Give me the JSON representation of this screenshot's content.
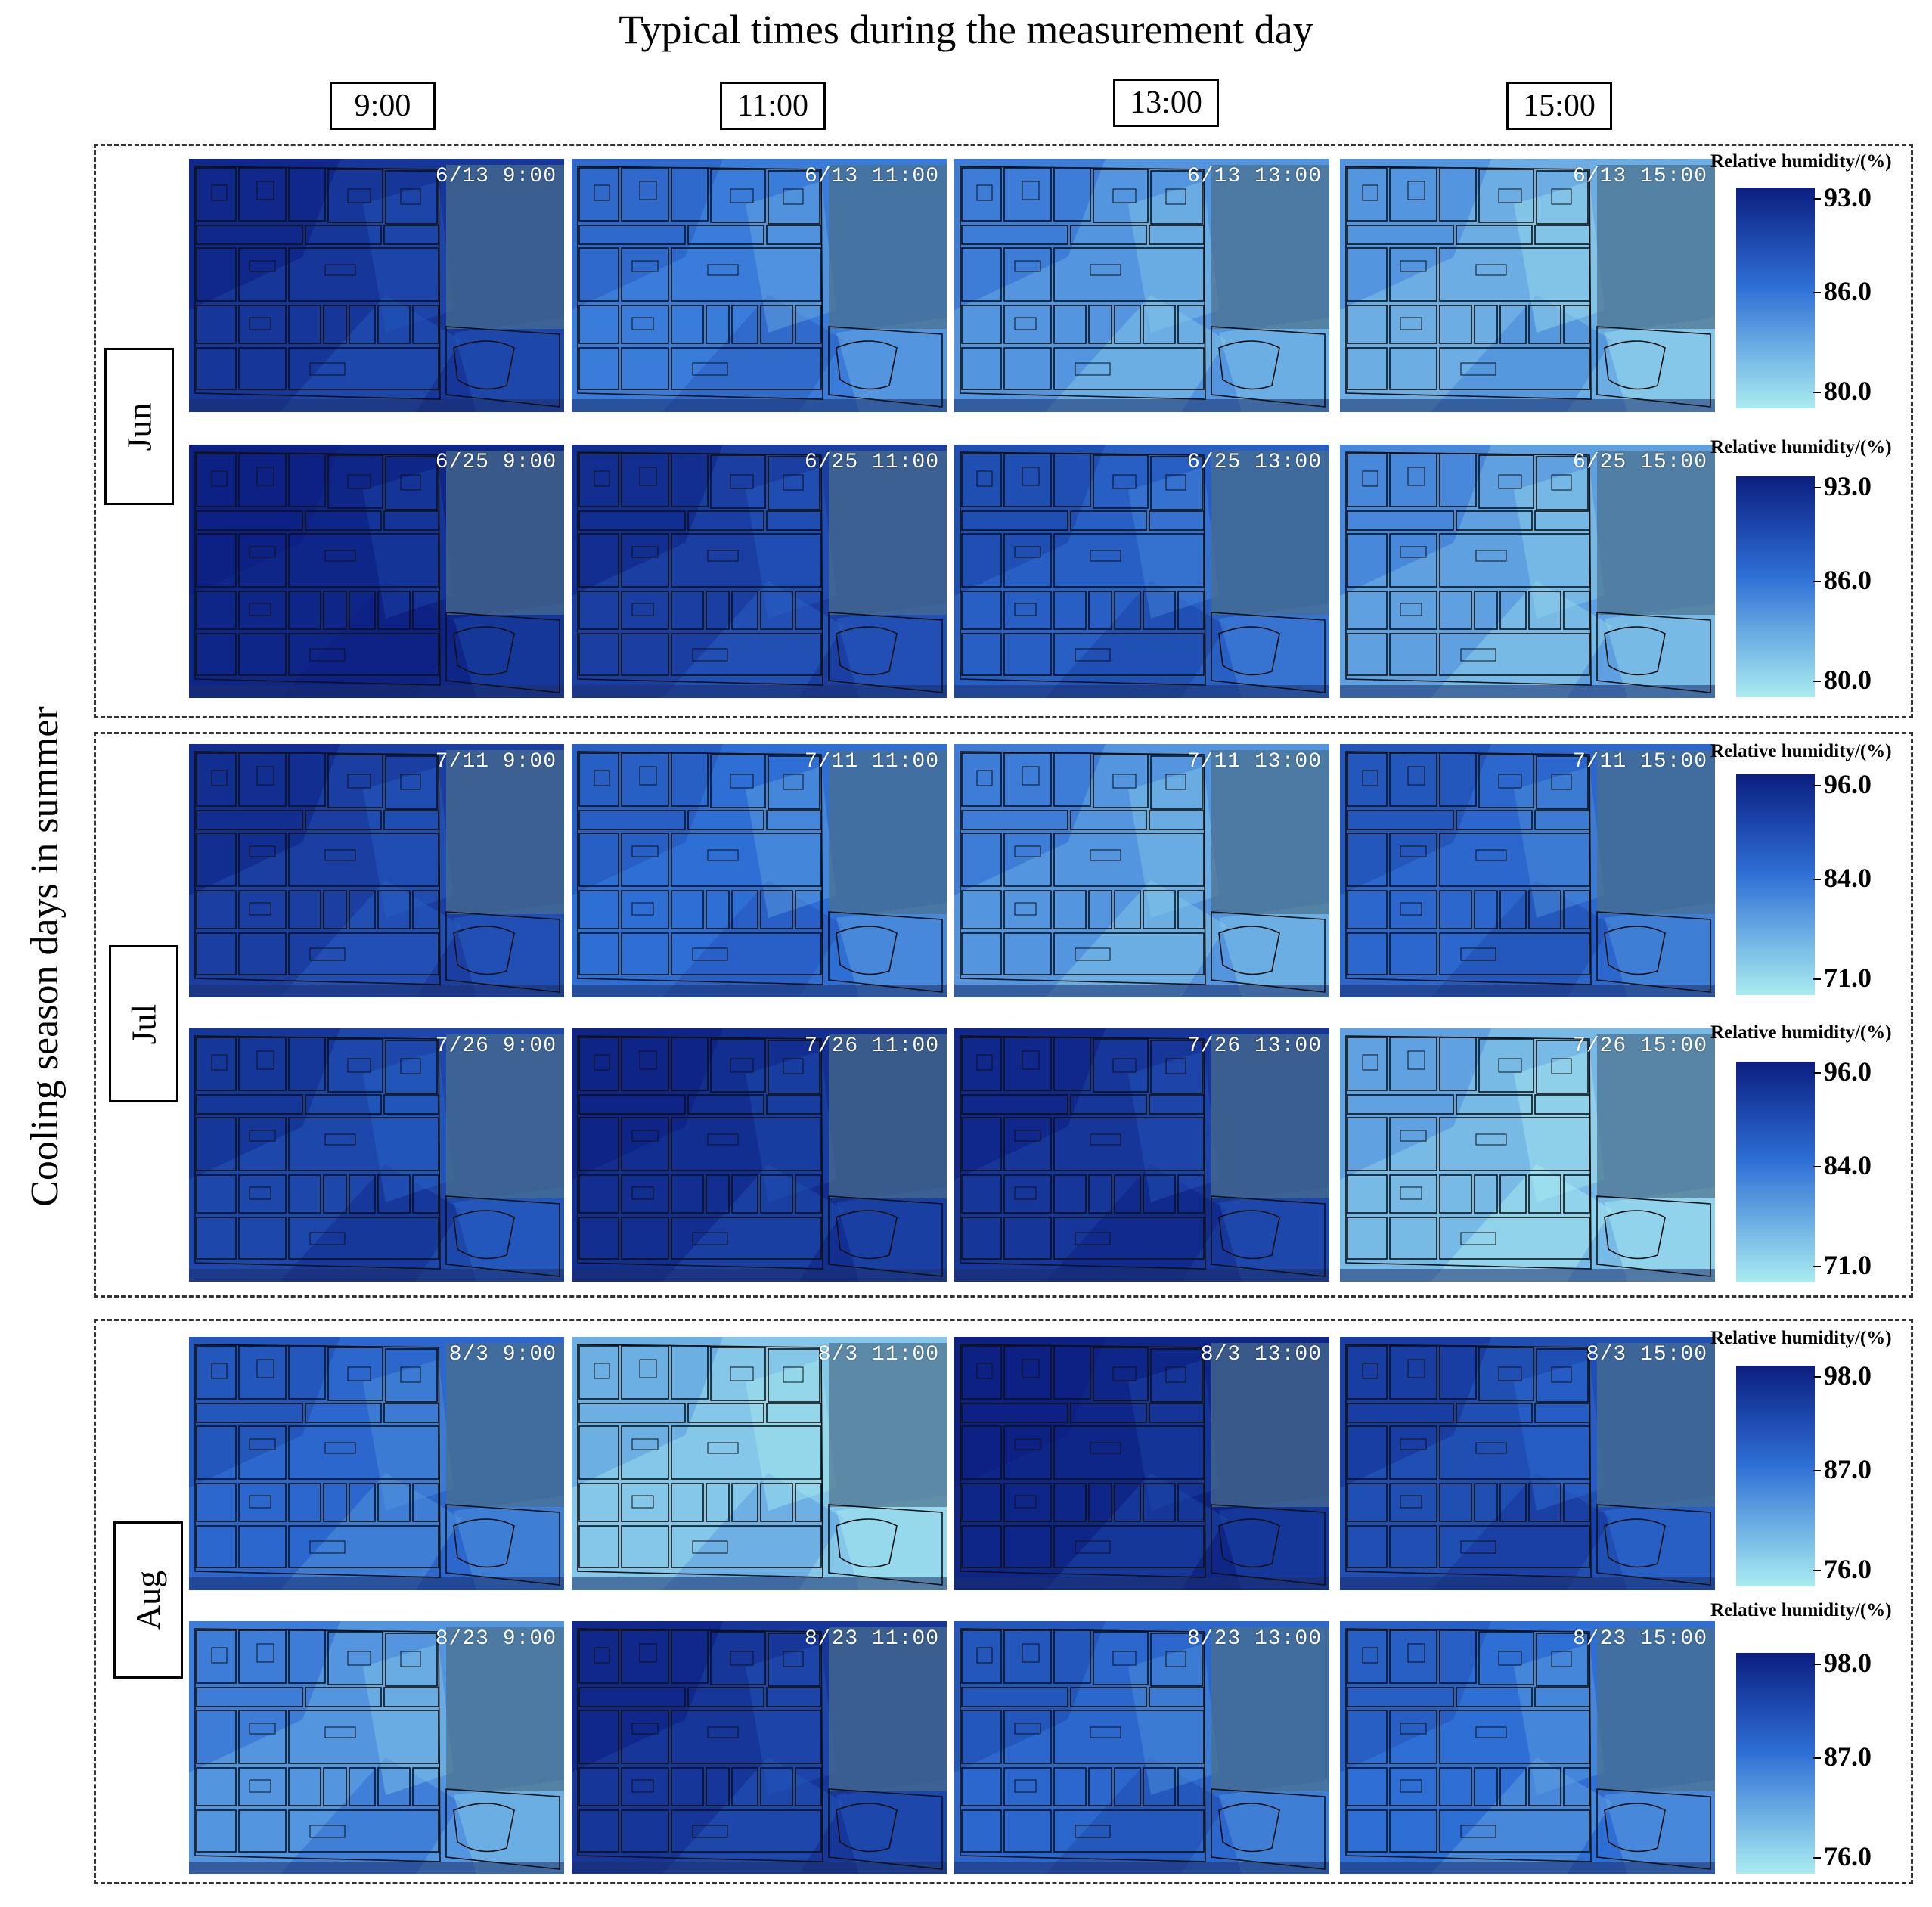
{
  "figure_title": "Typical times during the measurement day",
  "y_axis_title": "Cooling season days in summer",
  "times": [
    "9:00",
    "11:00",
    "13:00",
    "15:00"
  ],
  "colorbar_title": "Relative humidity/(%)",
  "months": [
    {
      "name": "Jun",
      "rows": [
        {
          "panels": [
            "6/13 9:00",
            "6/13 11:00",
            "6/13 13:00",
            "6/13 15:00"
          ],
          "colorbar": [
            "93.0",
            "86.0",
            "80.0"
          ]
        },
        {
          "panels": [
            "6/25 9:00",
            "6/25 11:00",
            "6/25 13:00",
            "6/25 15:00"
          ],
          "colorbar": [
            "93.0",
            "86.0",
            "80.0"
          ]
        }
      ]
    },
    {
      "name": "Jul",
      "rows": [
        {
          "panels": [
            "7/11 9:00",
            "7/11 11:00",
            "7/11 13:00",
            "7/11 15:00"
          ],
          "colorbar": [
            "96.0",
            "84.0",
            "71.0"
          ]
        },
        {
          "panels": [
            "7/26 9:00",
            "7/26 11:00",
            "7/26 13:00",
            "7/26 15:00"
          ],
          "colorbar": [
            "96.0",
            "84.0",
            "71.0"
          ]
        }
      ]
    },
    {
      "name": "Aug",
      "rows": [
        {
          "panels": [
            "8/3 9:00",
            "8/3 11:00",
            "8/3 13:00",
            "8/3 15:00"
          ],
          "colorbar": [
            "98.0",
            "87.0",
            "76.0"
          ]
        },
        {
          "panels": [
            "8/23 9:00",
            "8/23 11:00",
            "8/23 13:00",
            "8/23 15:00"
          ],
          "colorbar": [
            "98.0",
            "87.0",
            "76.0"
          ]
        }
      ]
    }
  ],
  "colors": {
    "humid_high": "#0c1e80",
    "humid_mid": "#2e6fd6",
    "humid_low": "#a9ecf0",
    "water_area": "#4a6f8a"
  }
}
